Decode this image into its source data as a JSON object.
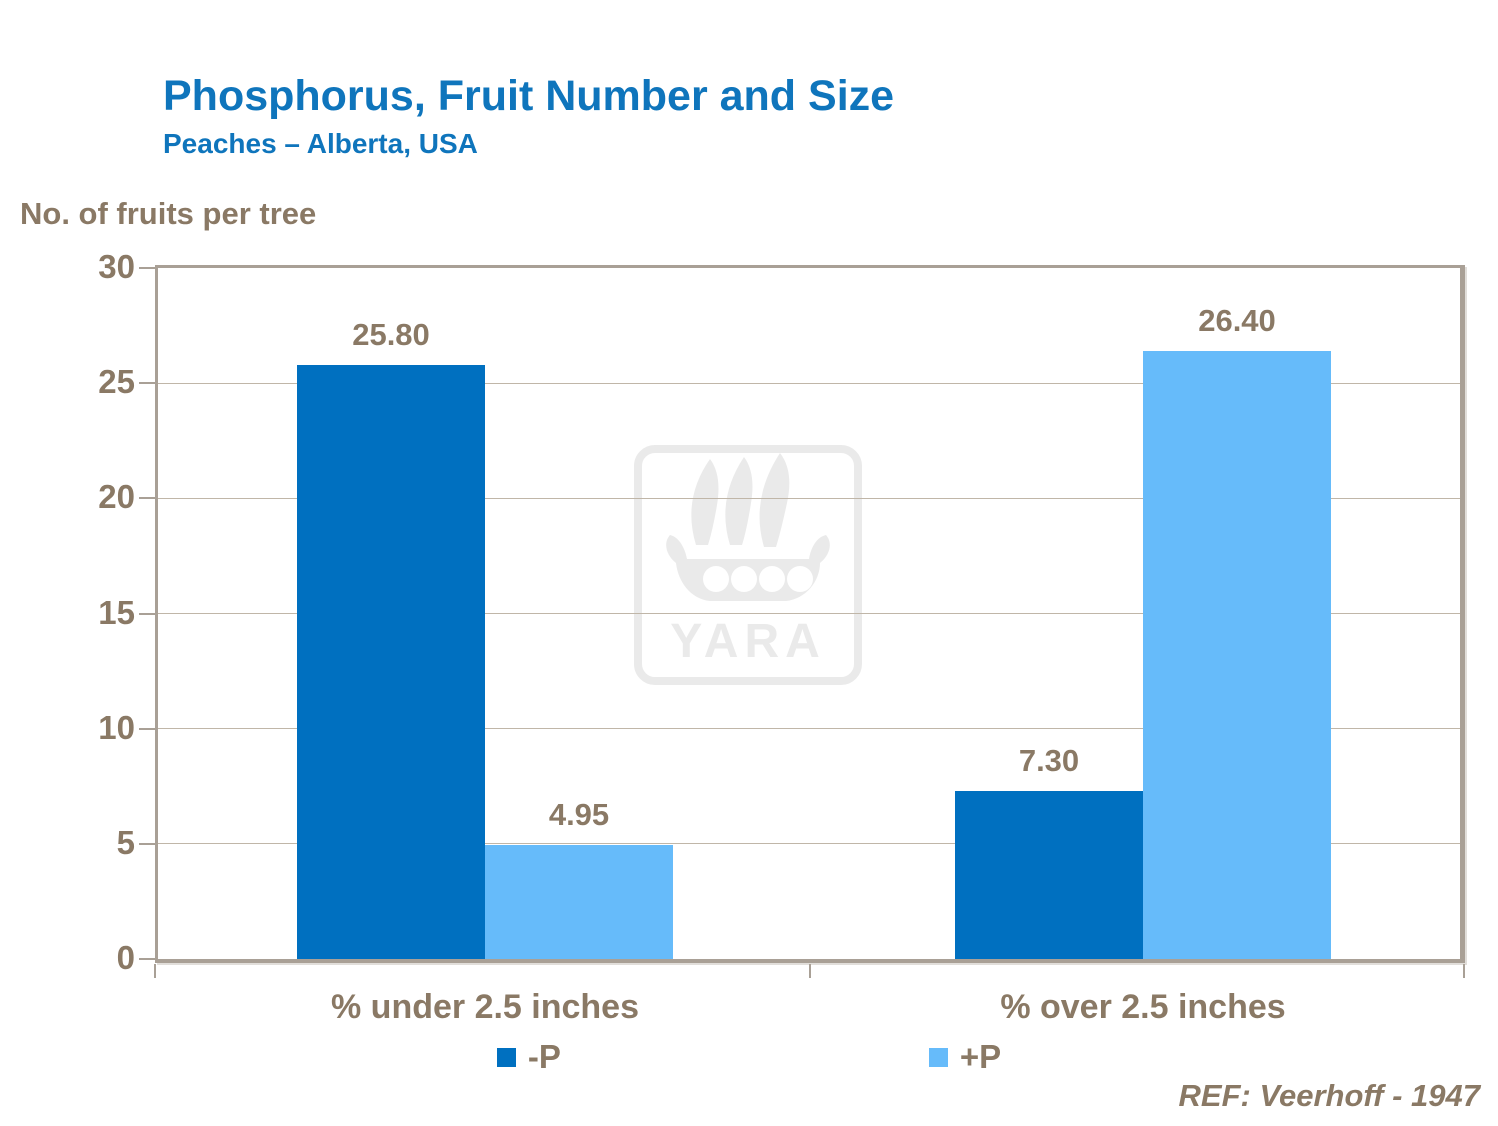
{
  "header": {
    "title": "Phosphorus, Fruit Number and Size",
    "subtitle": "Peaches – Alberta, USA"
  },
  "footer": {
    "reference": "REF: Veerhoff - 1947"
  },
  "watermark": {
    "brand": "YARA"
  },
  "colors": {
    "title_blue": "#0F75BC",
    "series_minus_p": "#0070C0",
    "series_plus_p": "#66BBFA",
    "axis_text_brown": "#8A7965",
    "gridline": "#C0B6A8",
    "plot_border": "#A9A096",
    "watermark_gray": "#EAEAEA",
    "background": "#FFFFFF"
  },
  "chart_data": {
    "type": "bar",
    "categories": [
      "% under 2.5 inches",
      "% over 2.5 inches"
    ],
    "series": [
      {
        "name": "-P",
        "color": "#0070C0",
        "values": [
          25.8,
          7.3
        ],
        "labels": [
          "25.80",
          "7.30"
        ]
      },
      {
        "name": "+P",
        "color": "#66BBFA",
        "values": [
          4.95,
          26.4
        ],
        "labels": [
          "4.95",
          "26.40"
        ]
      }
    ],
    "title": "Phosphorus, Fruit Number and Size",
    "subtitle": "Peaches – Alberta, USA",
    "xlabel": "",
    "ylabel": "No. of fruits per tree",
    "ylim": [
      0,
      30
    ],
    "yticks": [
      0,
      5,
      10,
      15,
      20,
      25,
      30
    ],
    "grid": true,
    "legend_position": "bottom",
    "annotation": "REF: Veerhoff - 1947"
  }
}
